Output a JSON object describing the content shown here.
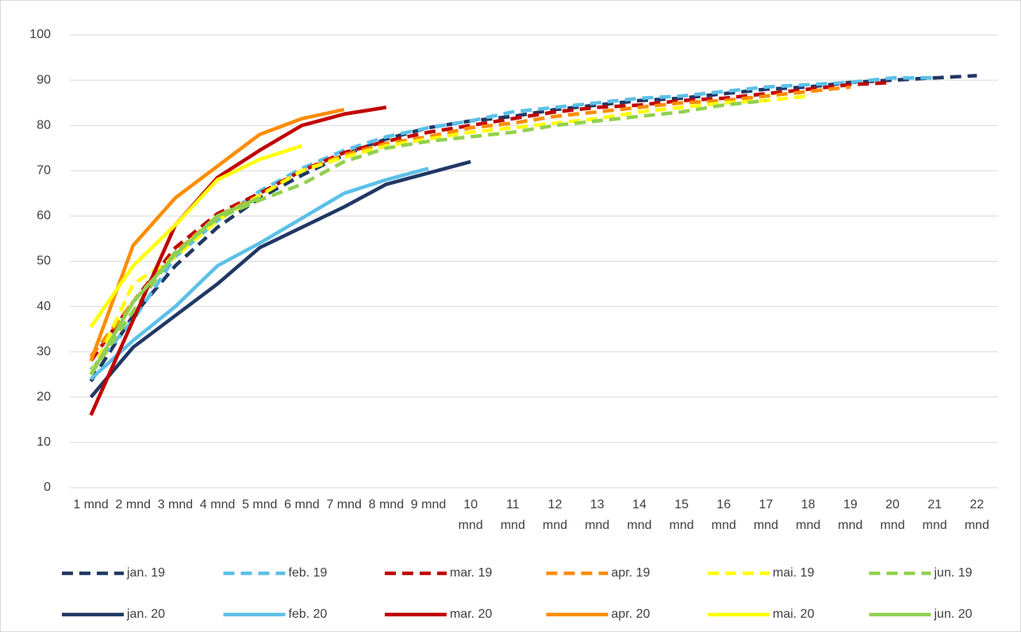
{
  "chart_data": {
    "type": "line",
    "categories": [
      "1 mnd",
      "2 mnd",
      "3 mnd",
      "4 mnd",
      "5 mnd",
      "6 mnd",
      "7 mnd",
      "8 mnd",
      "9 mnd",
      "10 mnd",
      "11 mnd",
      "12 mnd",
      "13 mnd",
      "14 mnd",
      "15 mnd",
      "16 mnd",
      "17 mnd",
      "18 mnd",
      "19 mnd",
      "20 mnd",
      "21 mnd",
      "22 mnd"
    ],
    "ylim": [
      0,
      100
    ],
    "yticks": [
      0,
      10,
      20,
      30,
      40,
      50,
      60,
      70,
      80,
      90,
      100
    ],
    "grid": true,
    "series": [
      {
        "name": "jan. 19",
        "color": "#203864",
        "dash": "dashed",
        "values": [
          23.5,
          38,
          49,
          57.5,
          64,
          69,
          73.5,
          77,
          79.5,
          81,
          82,
          83.5,
          84.5,
          85.5,
          86,
          87,
          88,
          88.5,
          89.5,
          90,
          90.5,
          91
        ]
      },
      {
        "name": "feb. 19",
        "color": "#5bc0e8",
        "dash": "dashed",
        "values": [
          26,
          37,
          51,
          59,
          65.5,
          70.5,
          74.5,
          77.5,
          79.5,
          81,
          83,
          84,
          85,
          86,
          86.5,
          87.5,
          88.5,
          89,
          89.5,
          90.5,
          90.5,
          null
        ]
      },
      {
        "name": "mar. 19",
        "color": "#c00000",
        "dash": "dashed",
        "values": [
          28,
          41,
          53,
          60.5,
          65,
          70,
          74,
          76.5,
          78.5,
          80,
          81.5,
          83,
          84,
          84.5,
          85.5,
          86,
          87,
          88,
          89,
          89.5,
          null,
          null
        ]
      },
      {
        "name": "apr. 19",
        "color": "#ff8c00",
        "dash": "dashed",
        "values": [
          29,
          41,
          52,
          60,
          64.5,
          70,
          73.5,
          76,
          77.5,
          79.5,
          80.5,
          82,
          83,
          84,
          85,
          85.5,
          86.5,
          87.5,
          88.5,
          null,
          null,
          null
        ]
      },
      {
        "name": "mai. 19",
        "color": "#ffff00",
        "dash": "dashed",
        "values": [
          25,
          45,
          51,
          59,
          64.5,
          70,
          73,
          75.5,
          77,
          78.5,
          79.5,
          80.5,
          81.5,
          83,
          84,
          85,
          85.5,
          86.5,
          null,
          null,
          null,
          null
        ]
      },
      {
        "name": "jun. 19",
        "color": "#92d050",
        "dash": "dashed",
        "values": [
          25,
          39,
          52,
          59.5,
          63.5,
          67,
          72,
          75,
          76.5,
          77.5,
          78.5,
          80,
          81,
          82,
          83,
          84.5,
          85.5,
          null,
          null,
          null,
          null,
          null
        ]
      },
      {
        "name": "jan. 20",
        "color": "#203864",
        "dash": "solid",
        "values": [
          20,
          31,
          38,
          45,
          53,
          57.5,
          62,
          67,
          69.5,
          72,
          null,
          null,
          null,
          null,
          null,
          null,
          null,
          null,
          null,
          null,
          null,
          null
        ]
      },
      {
        "name": "feb. 20",
        "color": "#5bc0e8",
        "dash": "solid",
        "values": [
          24,
          32.5,
          40,
          49,
          54,
          59.5,
          65,
          68,
          70.5,
          null,
          null,
          null,
          null,
          null,
          null,
          null,
          null,
          null,
          null,
          null,
          null,
          null
        ]
      },
      {
        "name": "mar. 20",
        "color": "#c00000",
        "dash": "solid",
        "values": [
          16,
          37,
          58,
          68.5,
          74.5,
          80,
          82.5,
          84,
          null,
          null,
          null,
          null,
          null,
          null,
          null,
          null,
          null,
          null,
          null,
          null,
          null,
          null
        ]
      },
      {
        "name": "apr. 20",
        "color": "#ff8c00",
        "dash": "solid",
        "values": [
          28,
          53.5,
          64,
          71,
          78,
          81.5,
          83.5,
          null,
          null,
          null,
          null,
          null,
          null,
          null,
          null,
          null,
          null,
          null,
          null,
          null,
          null,
          null
        ]
      },
      {
        "name": "mai. 20",
        "color": "#ffff00",
        "dash": "solid",
        "values": [
          35.5,
          49,
          58,
          68,
          72.5,
          75.5,
          null,
          null,
          null,
          null,
          null,
          null,
          null,
          null,
          null,
          null,
          null,
          null,
          null,
          null,
          null,
          null
        ]
      },
      {
        "name": "jun. 20",
        "color": "#92d050",
        "dash": "solid",
        "values": [
          25,
          41,
          51.5,
          60,
          64,
          null,
          null,
          null,
          null,
          null,
          null,
          null,
          null,
          null,
          null,
          null,
          null,
          null,
          null,
          null,
          null,
          null
        ]
      }
    ]
  }
}
